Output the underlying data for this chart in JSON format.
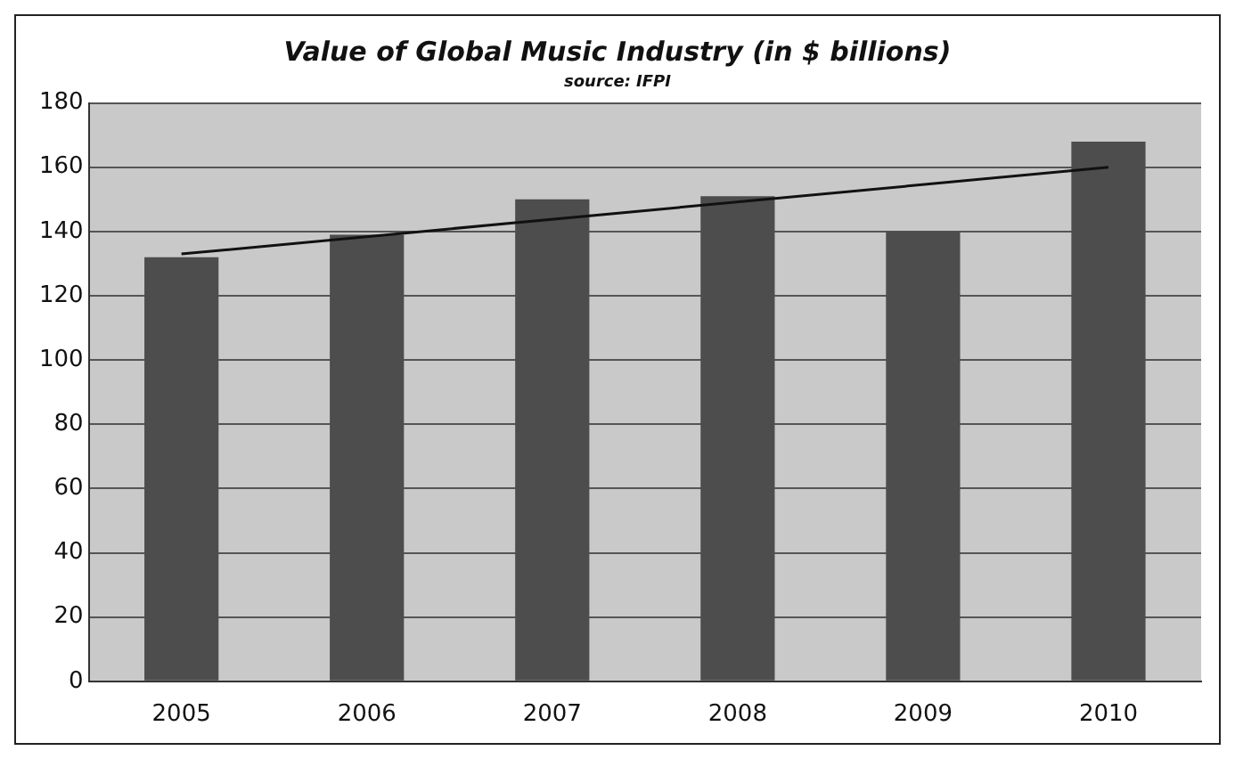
{
  "chart_data": {
    "type": "bar",
    "title": "Value of Global Music Industry (in $ billions)",
    "annotations": [
      "source: IFPI"
    ],
    "categories": [
      "2005",
      "2006",
      "2007",
      "2008",
      "2009",
      "2010"
    ],
    "series": [
      {
        "color": "#4d4d4d",
        "values": [
          132,
          139,
          150,
          151,
          140,
          168
        ]
      },
      {
        "type": "line",
        "color": "#111111",
        "values": [
          133,
          null,
          null,
          null,
          null,
          160
        ]
      }
    ],
    "ylim": [
      0,
      180
    ],
    "yticks": [
      0,
      20,
      40,
      60,
      80,
      100,
      120,
      140,
      160,
      180
    ],
    "grid": "y",
    "legend": false
  }
}
